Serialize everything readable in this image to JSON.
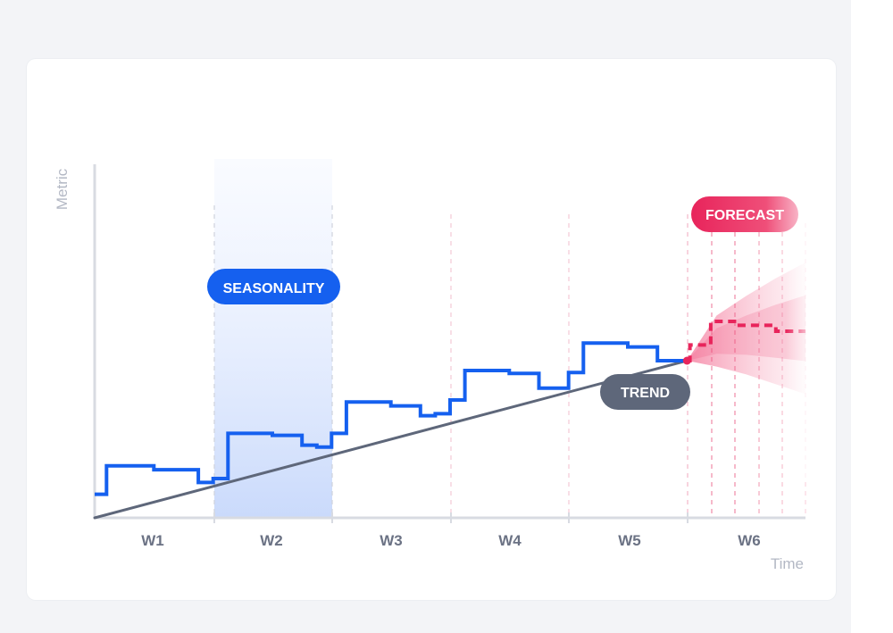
{
  "chart_data": {
    "type": "line",
    "ylabel": "Metric",
    "xlabel": "Time",
    "categories": [
      "W1",
      "W2",
      "W3",
      "W4",
      "W5",
      "W6"
    ],
    "series": [
      {
        "role": "observed",
        "style": "step",
        "color": "#1560ef",
        "x": [
          0,
          0.2,
          0.2,
          1.0,
          1.0,
          1.5,
          1.5,
          1.75,
          1.75,
          2.0,
          2.0,
          2.25,
          2.25,
          3.0,
          3.0,
          3.5,
          3.5,
          3.75,
          3.75,
          4.0,
          4.0,
          4.25,
          4.25,
          5.0,
          5.0,
          5.5,
          5.5,
          5.75,
          5.75,
          6.0,
          6.0,
          6.25,
          6.25,
          7.0,
          7.0,
          7.5,
          7.5,
          7.75,
          7.75,
          8.0,
          8.0,
          8.25,
          8.25,
          9.0,
          9.0,
          9.5,
          9.5,
          9.75,
          9.75,
          10.0
        ],
        "y": [
          1.2,
          1.2,
          2.65,
          2.65,
          2.45,
          2.45,
          2.45,
          2.45,
          1.8,
          1.8,
          2.0,
          2.0,
          4.3,
          4.3,
          4.2,
          4.2,
          3.7,
          3.7,
          3.6,
          3.6,
          4.3,
          4.3,
          5.9,
          5.9,
          5.7,
          5.7,
          5.2,
          5.2,
          5.3,
          5.3,
          6.0,
          6.0,
          7.5,
          7.5,
          7.35,
          7.35,
          6.6,
          6.6,
          6.6,
          6.6,
          7.4,
          7.4,
          8.9,
          8.9,
          8.7,
          8.7,
          8.0,
          8.0,
          8.0,
          8.0
        ]
      },
      {
        "role": "trend",
        "color": "#5e677a",
        "x": [
          0,
          10
        ],
        "y": [
          0,
          8.0
        ]
      },
      {
        "role": "forecast",
        "style": "dashed-step",
        "color": "#e8245b",
        "x": [
          10,
          10.05,
          10.05,
          10.4,
          10.4,
          10.8,
          10.8,
          11.5,
          11.5,
          12.0
        ],
        "y": [
          8.0,
          8.0,
          8.8,
          8.8,
          10.0,
          10.0,
          9.8,
          9.8,
          9.5,
          9.5
        ]
      }
    ],
    "forecast_band": {
      "x": [
        10,
        10.5,
        11,
        11.5,
        12
      ],
      "y_low": [
        8.0,
        7.7,
        7.3,
        6.8,
        6.3
      ],
      "y_high": [
        8.0,
        10.3,
        11.3,
        12.2,
        13.0
      ]
    },
    "seasonality_span": [
      2,
      4
    ],
    "xlim": [
      0,
      12
    ],
    "ylim": [
      0,
      18
    ],
    "grid": "vertical-dashed",
    "annotations": [
      {
        "text": "SEASONALITY",
        "color": "#1560ef"
      },
      {
        "text": "TREND",
        "color": "#5e677a"
      },
      {
        "text": "FORECAST",
        "color": "#e8245b"
      }
    ]
  }
}
